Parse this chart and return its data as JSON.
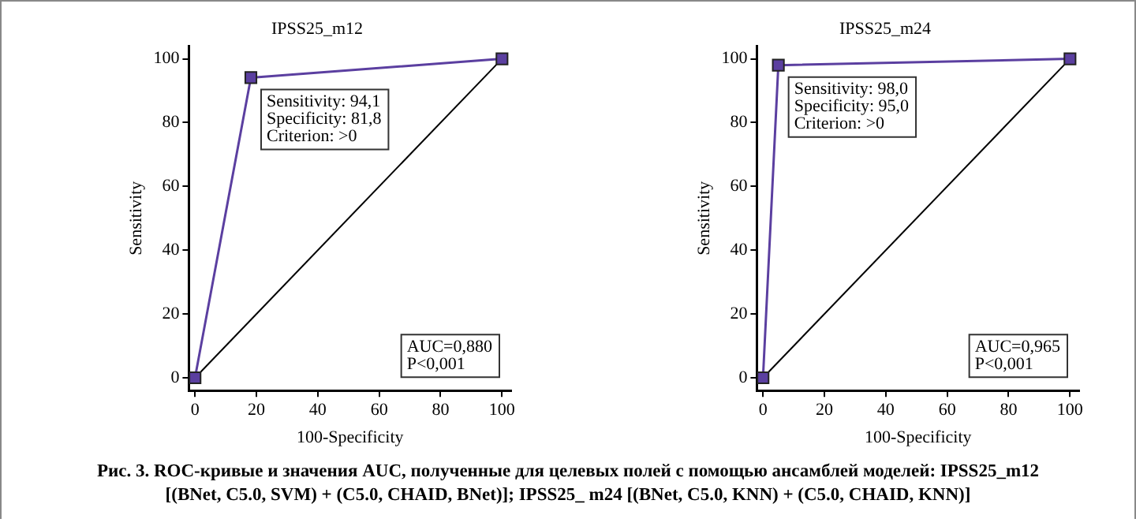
{
  "chart_data": [
    {
      "type": "line",
      "title": "IPSS25_m12",
      "xlabel": "100-Specificity",
      "ylabel": "Sensitivity",
      "xlim": [
        -2,
        103
      ],
      "ylim": [
        -4,
        104
      ],
      "xticks": [
        0,
        20,
        40,
        60,
        80,
        100
      ],
      "yticks": [
        0,
        20,
        40,
        60,
        80,
        100
      ],
      "grid": false,
      "legend": false,
      "series": [
        {
          "color": "#5b3fa0",
          "x": [
            0,
            18.2,
            100
          ],
          "values": [
            0,
            94.1,
            100
          ],
          "marker": "square"
        },
        {
          "color": "#000000",
          "x": [
            0,
            100
          ],
          "values": [
            0,
            100
          ],
          "marker": "none"
        }
      ],
      "annotations": [
        {
          "text": "Sensitivity: 94,1\nSpecificity: 81,8\nCriterion: >0",
          "x": 18.2,
          "y": 94.1
        },
        "AUC=0,880\nP<0,001"
      ]
    },
    {
      "type": "line",
      "title": "IPSS25_m24",
      "xlabel": "100-Specificity",
      "ylabel": "Sensitivity",
      "xlim": [
        -2,
        103
      ],
      "ylim": [
        -4,
        104
      ],
      "xticks": [
        0,
        20,
        40,
        60,
        80,
        100
      ],
      "yticks": [
        0,
        20,
        40,
        60,
        80,
        100
      ],
      "grid": false,
      "legend": false,
      "series": [
        {
          "color": "#5b3fa0",
          "x": [
            0,
            5,
            100
          ],
          "values": [
            0,
            98,
            100
          ],
          "marker": "square"
        },
        {
          "color": "#000000",
          "x": [
            0,
            100
          ],
          "values": [
            0,
            100
          ],
          "marker": "none"
        }
      ],
      "annotations": [
        {
          "text": "Sensitivity: 98,0\nSpecificity: 95,0\nCriterion: >0",
          "x": 5,
          "y": 98
        },
        "AUC=0,965\nP<0,001"
      ]
    },
    {
      "type": "other",
      "annotations": [
        "Рис. 3. ROC-кривые и значения AUC, полученные для целевых полей с помощью ансамблей моделей: IPSS25_m12 [(BNet, C5.0, SVM) +  (C5.0, CHAID, BNet)]; IPSS25_ m24 [(BNet, C5.0, KNN) + (C5.0, CHAID, KNN)]"
      ]
    }
  ]
}
